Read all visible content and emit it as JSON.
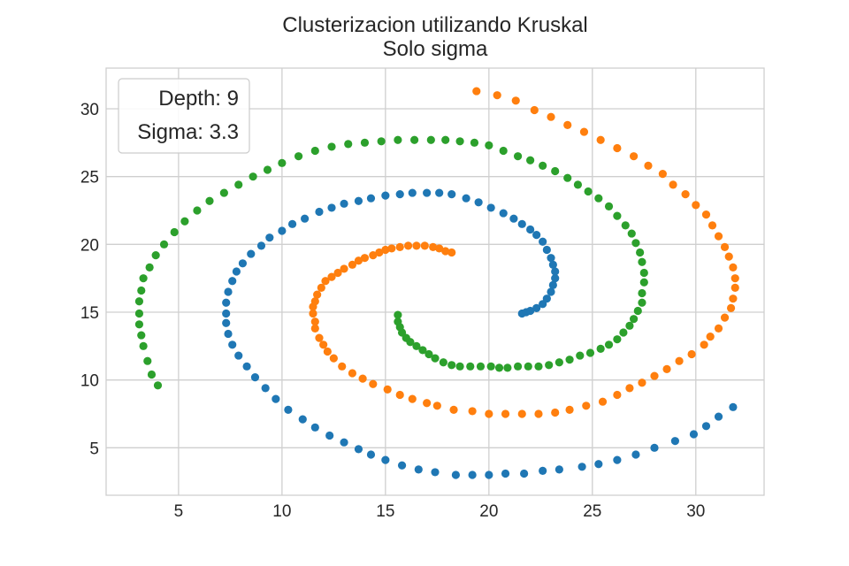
{
  "chart_data": {
    "type": "scatter",
    "title": "Clusterizacion utilizando Kruskal",
    "subtitle": "Solo sigma",
    "xlabel": "",
    "ylabel": "",
    "xlim": [
      1.5,
      33.3
    ],
    "ylim": [
      1.5,
      33.0
    ],
    "xticks": [
      "5",
      "10",
      "15",
      "20",
      "25",
      "30"
    ],
    "yticks": [
      "5",
      "10",
      "15",
      "20",
      "25",
      "30"
    ],
    "grid": true,
    "legend_placement": "top-left",
    "annotations": [
      "Depth: 9",
      "Sigma: 3.3"
    ],
    "series": [
      {
        "color": "#1f77b4",
        "values": [
          [
            21.6,
            14.9
          ],
          [
            21.8,
            15.0
          ],
          [
            22.0,
            15.1
          ],
          [
            22.3,
            15.3
          ],
          [
            22.6,
            15.6
          ],
          [
            22.8,
            16.0
          ],
          [
            23.0,
            16.5
          ],
          [
            23.1,
            17.0
          ],
          [
            23.2,
            17.5
          ],
          [
            23.2,
            18.0
          ],
          [
            23.1,
            18.5
          ],
          [
            23.0,
            19.0
          ],
          [
            22.8,
            19.6
          ],
          [
            22.6,
            20.2
          ],
          [
            22.3,
            20.7
          ],
          [
            22.0,
            21.1
          ],
          [
            21.6,
            21.5
          ],
          [
            21.2,
            21.9
          ],
          [
            20.7,
            22.3
          ],
          [
            20.1,
            22.7
          ],
          [
            19.5,
            23.1
          ],
          [
            18.9,
            23.4
          ],
          [
            18.2,
            23.7
          ],
          [
            17.6,
            23.8
          ],
          [
            17.0,
            23.8
          ],
          [
            16.3,
            23.8
          ],
          [
            15.7,
            23.7
          ],
          [
            15.0,
            23.6
          ],
          [
            14.3,
            23.4
          ],
          [
            13.7,
            23.2
          ],
          [
            13.0,
            23.0
          ],
          [
            12.4,
            22.7
          ],
          [
            11.8,
            22.4
          ],
          [
            11.1,
            21.9
          ],
          [
            10.5,
            21.5
          ],
          [
            10.0,
            21.0
          ],
          [
            9.4,
            20.5
          ],
          [
            9.0,
            19.9
          ],
          [
            8.5,
            19.3
          ],
          [
            8.1,
            18.6
          ],
          [
            7.8,
            18.0
          ],
          [
            7.6,
            17.3
          ],
          [
            7.4,
            16.5
          ],
          [
            7.3,
            15.7
          ],
          [
            7.3,
            14.9
          ],
          [
            7.3,
            14.2
          ],
          [
            7.4,
            13.4
          ],
          [
            7.6,
            12.6
          ],
          [
            7.9,
            11.8
          ],
          [
            8.3,
            11.0
          ],
          [
            8.7,
            10.2
          ],
          [
            9.2,
            9.4
          ],
          [
            9.7,
            8.6
          ],
          [
            10.3,
            7.8
          ],
          [
            11.0,
            7.1
          ],
          [
            11.6,
            6.5
          ],
          [
            12.3,
            5.9
          ],
          [
            13.0,
            5.4
          ],
          [
            13.7,
            4.9
          ],
          [
            14.3,
            4.5
          ],
          [
            15.0,
            4.1
          ],
          [
            15.8,
            3.7
          ],
          [
            16.6,
            3.4
          ],
          [
            17.4,
            3.2
          ],
          [
            18.4,
            3.0
          ],
          [
            19.2,
            3.0
          ],
          [
            20.0,
            3.0
          ],
          [
            20.8,
            3.1
          ],
          [
            21.7,
            3.1
          ],
          [
            22.6,
            3.3
          ],
          [
            23.4,
            3.4
          ],
          [
            24.5,
            3.6
          ],
          [
            25.3,
            3.8
          ],
          [
            26.2,
            4.1
          ],
          [
            27.1,
            4.5
          ],
          [
            28.0,
            5.0
          ],
          [
            29.0,
            5.5
          ],
          [
            29.9,
            6.0
          ],
          [
            30.5,
            6.6
          ],
          [
            31.1,
            7.3
          ],
          [
            31.8,
            8.0
          ]
        ]
      },
      {
        "color": "#ff7f0e",
        "values": [
          [
            18.2,
            19.4
          ],
          [
            17.9,
            19.5
          ],
          [
            17.6,
            19.7
          ],
          [
            17.3,
            19.8
          ],
          [
            16.9,
            19.9
          ],
          [
            16.5,
            19.9
          ],
          [
            16.1,
            19.9
          ],
          [
            15.7,
            19.8
          ],
          [
            15.3,
            19.7
          ],
          [
            15.0,
            19.6
          ],
          [
            14.7,
            19.4
          ],
          [
            14.4,
            19.2
          ],
          [
            14.0,
            19.0
          ],
          [
            13.7,
            18.8
          ],
          [
            13.4,
            18.5
          ],
          [
            13.0,
            18.2
          ],
          [
            12.7,
            17.9
          ],
          [
            12.4,
            17.6
          ],
          [
            12.1,
            17.3
          ],
          [
            11.9,
            16.8
          ],
          [
            11.7,
            16.3
          ],
          [
            11.6,
            15.8
          ],
          [
            11.5,
            15.4
          ],
          [
            11.5,
            14.9
          ],
          [
            11.6,
            14.3
          ],
          [
            11.6,
            13.8
          ],
          [
            11.8,
            13.1
          ],
          [
            12.0,
            12.6
          ],
          [
            12.2,
            12.1
          ],
          [
            12.5,
            11.6
          ],
          [
            12.9,
            11.0
          ],
          [
            13.4,
            10.5
          ],
          [
            13.9,
            10.1
          ],
          [
            14.4,
            9.7
          ],
          [
            15.1,
            9.3
          ],
          [
            15.7,
            8.9
          ],
          [
            16.3,
            8.6
          ],
          [
            17.0,
            8.3
          ],
          [
            17.5,
            8.1
          ],
          [
            18.3,
            7.8
          ],
          [
            19.2,
            7.7
          ],
          [
            20.0,
            7.5
          ],
          [
            20.8,
            7.5
          ],
          [
            21.6,
            7.5
          ],
          [
            22.4,
            7.5
          ],
          [
            23.2,
            7.6
          ],
          [
            23.9,
            7.8
          ],
          [
            24.7,
            8.1
          ],
          [
            25.5,
            8.4
          ],
          [
            26.2,
            8.9
          ],
          [
            26.8,
            9.4
          ],
          [
            27.4,
            9.8
          ],
          [
            28.0,
            10.3
          ],
          [
            28.6,
            10.8
          ],
          [
            29.2,
            11.4
          ],
          [
            29.8,
            11.9
          ],
          [
            30.4,
            12.6
          ],
          [
            30.7,
            13.2
          ],
          [
            31.1,
            13.8
          ],
          [
            31.4,
            14.6
          ],
          [
            31.7,
            15.3
          ],
          [
            31.8,
            16.0
          ],
          [
            31.9,
            16.8
          ],
          [
            31.9,
            17.5
          ],
          [
            31.8,
            18.3
          ],
          [
            31.6,
            19.1
          ],
          [
            31.4,
            19.8
          ],
          [
            31.1,
            20.6
          ],
          [
            30.8,
            21.4
          ],
          [
            30.5,
            22.2
          ],
          [
            30.0,
            22.9
          ],
          [
            29.5,
            23.7
          ],
          [
            28.9,
            24.4
          ],
          [
            28.4,
            25.2
          ],
          [
            27.7,
            25.8
          ],
          [
            27.0,
            26.5
          ],
          [
            26.2,
            27.1
          ],
          [
            25.4,
            27.7
          ],
          [
            24.6,
            28.3
          ],
          [
            23.8,
            28.8
          ],
          [
            23.0,
            29.4
          ],
          [
            22.2,
            29.9
          ],
          [
            21.3,
            30.6
          ],
          [
            20.4,
            31.0
          ],
          [
            19.4,
            31.3
          ]
        ]
      },
      {
        "color": "#2ca02c",
        "values": [
          [
            15.6,
            14.8
          ],
          [
            15.6,
            14.3
          ],
          [
            15.7,
            13.9
          ],
          [
            15.8,
            13.5
          ],
          [
            16.0,
            13.1
          ],
          [
            16.2,
            12.8
          ],
          [
            16.5,
            12.5
          ],
          [
            16.8,
            12.2
          ],
          [
            17.1,
            11.9
          ],
          [
            17.4,
            11.6
          ],
          [
            17.8,
            11.3
          ],
          [
            18.2,
            11.1
          ],
          [
            18.6,
            11.0
          ],
          [
            19.1,
            11.0
          ],
          [
            19.6,
            11.0
          ],
          [
            20.1,
            11.0
          ],
          [
            20.5,
            10.9
          ],
          [
            20.9,
            10.9
          ],
          [
            21.4,
            11.0
          ],
          [
            21.9,
            11.0
          ],
          [
            22.4,
            11.0
          ],
          [
            22.9,
            11.1
          ],
          [
            23.4,
            11.3
          ],
          [
            23.9,
            11.5
          ],
          [
            24.4,
            11.8
          ],
          [
            24.9,
            12.0
          ],
          [
            25.4,
            12.3
          ],
          [
            25.8,
            12.6
          ],
          [
            26.2,
            13.0
          ],
          [
            26.5,
            13.5
          ],
          [
            26.8,
            14.0
          ],
          [
            27.0,
            14.5
          ],
          [
            27.2,
            15.1
          ],
          [
            27.4,
            15.7
          ],
          [
            27.4,
            16.4
          ],
          [
            27.5,
            17.2
          ],
          [
            27.5,
            17.9
          ],
          [
            27.4,
            18.7
          ],
          [
            27.3,
            19.4
          ],
          [
            27.1,
            20.1
          ],
          [
            26.9,
            20.8
          ],
          [
            26.6,
            21.4
          ],
          [
            26.2,
            22.1
          ],
          [
            25.8,
            22.8
          ],
          [
            25.3,
            23.4
          ],
          [
            24.8,
            23.9
          ],
          [
            24.3,
            24.4
          ],
          [
            23.8,
            24.9
          ],
          [
            23.2,
            25.4
          ],
          [
            22.6,
            25.8
          ],
          [
            22.0,
            26.2
          ],
          [
            21.4,
            26.5
          ],
          [
            20.7,
            26.9
          ],
          [
            20.0,
            27.3
          ],
          [
            19.3,
            27.5
          ],
          [
            18.6,
            27.6
          ],
          [
            17.9,
            27.7
          ],
          [
            17.2,
            27.7
          ],
          [
            16.4,
            27.7
          ],
          [
            15.6,
            27.7
          ],
          [
            14.8,
            27.6
          ],
          [
            14.0,
            27.5
          ],
          [
            13.2,
            27.4
          ],
          [
            12.4,
            27.2
          ],
          [
            11.6,
            26.9
          ],
          [
            10.8,
            26.5
          ],
          [
            10.0,
            26.0
          ],
          [
            9.3,
            25.5
          ],
          [
            8.6,
            25.0
          ],
          [
            7.9,
            24.4
          ],
          [
            7.2,
            23.8
          ],
          [
            6.5,
            23.2
          ],
          [
            5.9,
            22.5
          ],
          [
            5.3,
            21.7
          ],
          [
            4.8,
            20.9
          ],
          [
            4.3,
            20.0
          ],
          [
            3.9,
            19.2
          ],
          [
            3.6,
            18.3
          ],
          [
            3.3,
            17.5
          ],
          [
            3.2,
            16.6
          ],
          [
            3.1,
            15.8
          ],
          [
            3.1,
            14.9
          ],
          [
            3.1,
            14.1
          ],
          [
            3.2,
            13.3
          ],
          [
            3.3,
            12.5
          ],
          [
            3.5,
            11.4
          ],
          [
            3.7,
            10.4
          ],
          [
            4.0,
            9.6
          ]
        ]
      }
    ]
  }
}
